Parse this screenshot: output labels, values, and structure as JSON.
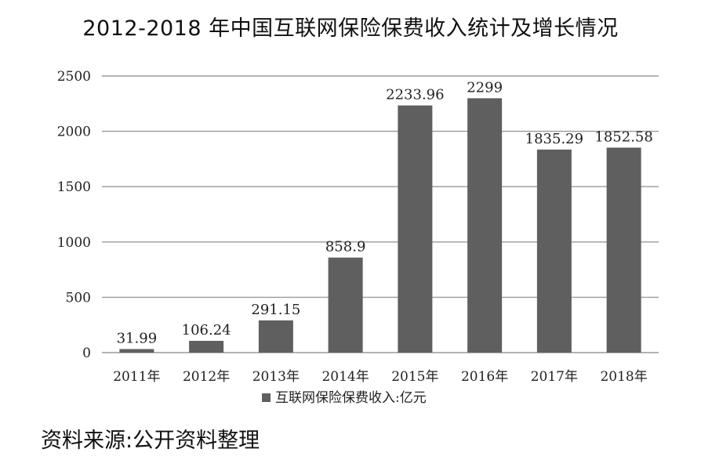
{
  "title": "2012-2018 年中国互联网保险保费收入统计及增长情况",
  "source": "资料来源:公开资料整理",
  "chart_data": {
    "type": "bar",
    "title": "2012-2018 年中国互联网保险保费收入统计及增长情况",
    "categories": [
      "2011年",
      "2012年",
      "2013年",
      "2014年",
      "2015年",
      "2016年",
      "2017年",
      "2018年"
    ],
    "series": [
      {
        "name": "互联网保险保费收入:亿元",
        "values": [
          31.99,
          106.24,
          291.15,
          858.9,
          2233.96,
          2299,
          1835.29,
          1852.58
        ],
        "labels": [
          "31.99",
          "106.24",
          "291.15",
          "858.9",
          "2233.96",
          "2299",
          "1835.29",
          "1852.58"
        ]
      }
    ],
    "yticks": [
      "0",
      "500",
      "1000",
      "1500",
      "2000",
      "2500"
    ],
    "ylim": [
      0,
      2500
    ],
    "grid": true,
    "legend": "bottom",
    "colors": {
      "bar": "#5f5f5f",
      "grid": "#9a9a9a"
    }
  }
}
